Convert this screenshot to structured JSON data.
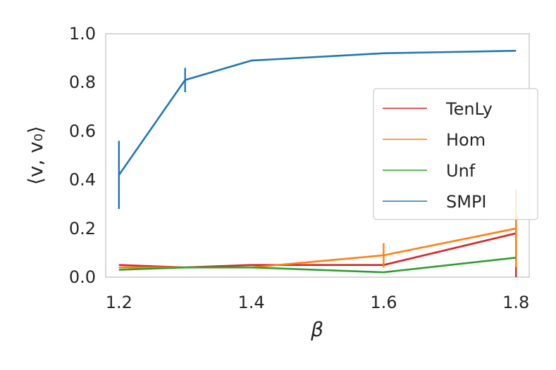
{
  "chart_data": {
    "type": "line",
    "xlabel": "β",
    "ylabel": "⟨v, v₀⟩",
    "xlim": [
      1.18,
      1.82
    ],
    "ylim": [
      0.0,
      1.0
    ],
    "xticks": [
      1.2,
      1.4,
      1.6,
      1.8
    ],
    "xtick_labels": [
      "1.2",
      "1.4",
      "1.6",
      "1.8"
    ],
    "yticks": [
      0.0,
      0.2,
      0.4,
      0.6,
      0.8,
      1.0
    ],
    "ytick_labels": [
      "0.0",
      "0.2",
      "0.4",
      "0.6",
      "0.8",
      "1.0"
    ],
    "grid": false,
    "legend_position": "right",
    "series": [
      {
        "name": "TenLy",
        "color": "#d62728",
        "points": [
          {
            "x": 1.2,
            "y": 0.05
          },
          {
            "x": 1.3,
            "y": 0.04
          },
          {
            "x": 1.4,
            "y": 0.05
          },
          {
            "x": 1.6,
            "y": 0.05
          },
          {
            "x": 1.8,
            "y": 0.18,
            "err": 0.18
          }
        ]
      },
      {
        "name": "Hom",
        "color": "#ff7f0e",
        "points": [
          {
            "x": 1.2,
            "y": 0.04
          },
          {
            "x": 1.3,
            "y": 0.04
          },
          {
            "x": 1.4,
            "y": 0.04
          },
          {
            "x": 1.6,
            "y": 0.09,
            "err": 0.05
          },
          {
            "x": 1.8,
            "y": 0.2,
            "err": 0.16
          }
        ]
      },
      {
        "name": "Unf",
        "color": "#2ca02c",
        "points": [
          {
            "x": 1.2,
            "y": 0.03
          },
          {
            "x": 1.3,
            "y": 0.04
          },
          {
            "x": 1.4,
            "y": 0.04
          },
          {
            "x": 1.6,
            "y": 0.02
          },
          {
            "x": 1.8,
            "y": 0.08
          }
        ]
      },
      {
        "name": "SMPI",
        "color": "#1f77b4",
        "points": [
          {
            "x": 1.2,
            "y": 0.42,
            "err": 0.14
          },
          {
            "x": 1.3,
            "y": 0.81,
            "err": 0.05
          },
          {
            "x": 1.4,
            "y": 0.89
          },
          {
            "x": 1.6,
            "y": 0.92
          },
          {
            "x": 1.8,
            "y": 0.93
          }
        ]
      }
    ]
  }
}
